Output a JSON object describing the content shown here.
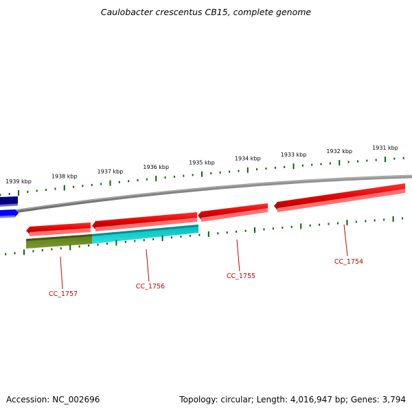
{
  "title": "Caulobacter crescentus CB15, complete genome",
  "scale": {
    "unit": "kbp",
    "ticks": [
      {
        "label": "1939 kbp",
        "kbp": 1939
      },
      {
        "label": "1938 kbp",
        "kbp": 1938
      },
      {
        "label": "1937 kbp",
        "kbp": 1937
      },
      {
        "label": "1936 kbp",
        "kbp": 1936
      },
      {
        "label": "1935 kbp",
        "kbp": 1935
      },
      {
        "label": "1934 kbp",
        "kbp": 1934
      },
      {
        "label": "1933 kbp",
        "kbp": 1933
      },
      {
        "label": "1932 kbp",
        "kbp": 1932
      },
      {
        "label": "1931 kbp",
        "kbp": 1931
      }
    ]
  },
  "genes": [
    {
      "label": "CC_1757",
      "strand": "reverse",
      "color": "#e60000"
    },
    {
      "label": "CC_1756",
      "strand": "reverse",
      "color": "#e60000"
    },
    {
      "label": "CC_1755",
      "strand": "reverse",
      "color": "#e60000"
    },
    {
      "label": "CC_1754",
      "strand": "reverse",
      "color": "#e60000"
    }
  ],
  "features": {
    "cds_colors": [
      "#6b8e23",
      "#00cccc"
    ],
    "outer_colors": [
      "#000080",
      "#0000ff"
    ],
    "backbone_color": "#808080",
    "tick_color": "#006400",
    "label_color": "#c00000"
  },
  "footer": {
    "accession": "Accession: NC_002696",
    "summary": "Topology: circular; Length: 4,016,947 bp; Genes: 3,794"
  }
}
